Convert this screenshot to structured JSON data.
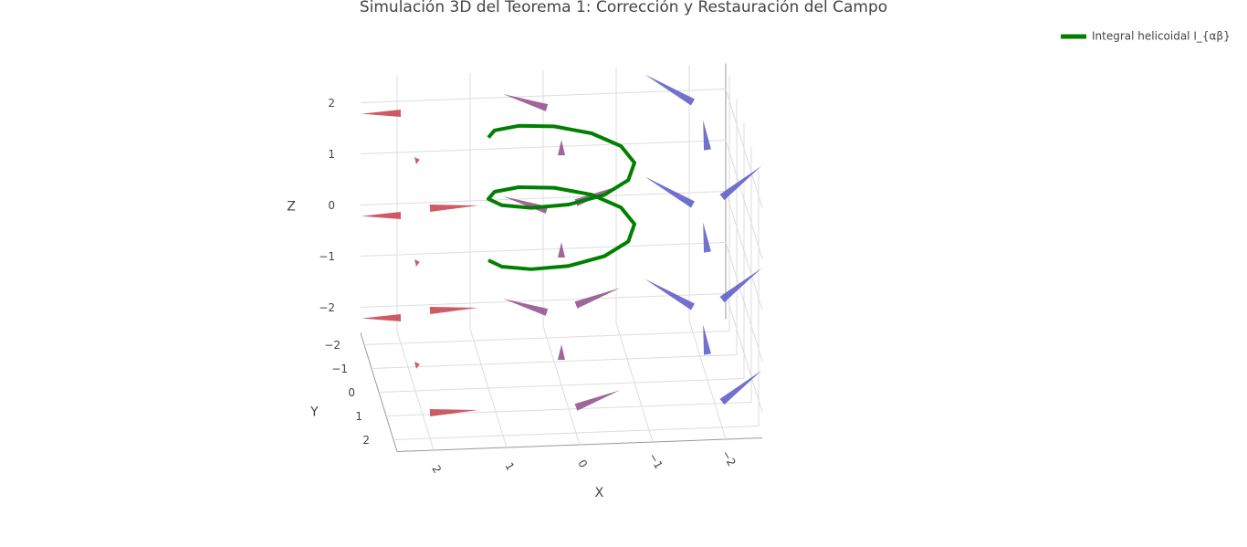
{
  "chart_data": {
    "type": "scatter3d",
    "title": "Simulación 3D del Teorema 1: Corrección y Restauración del Campo",
    "xlabel": "X",
    "ylabel": "Y",
    "zlabel": "Z",
    "xlim": [
      -2.5,
      2.5
    ],
    "ylim": [
      -2.5,
      2.5
    ],
    "zlim": [
      -2.5,
      2.5
    ],
    "xticks": [
      2,
      1,
      0,
      {
        "value": -1,
        "label": "−1"
      },
      {
        "value": -2,
        "label": "−2"
      }
    ],
    "yticks": [
      {
        "value": -2,
        "label": "−2"
      },
      {
        "value": -1,
        "label": "−1"
      },
      0,
      1,
      2
    ],
    "zticks": [
      {
        "value": -2,
        "label": "−2"
      },
      {
        "value": -1,
        "label": "−1"
      },
      0,
      1,
      2
    ],
    "grid": true,
    "legend": "top-right",
    "series": [
      {
        "name": "Integral helicoidal I_{αβ}",
        "color": "#008000",
        "x": [
          1,
          0.866,
          0.5,
          0,
          -0.5,
          -0.866,
          -1,
          -0.866,
          -0.5,
          0,
          0.5,
          0.866,
          1,
          0.866,
          0.5,
          0,
          -0.5,
          -0.866,
          -1,
          -0.866,
          -0.5,
          0,
          0.5,
          0.866,
          1
        ],
        "y": [
          0,
          0.5,
          0.866,
          1,
          0.866,
          0.5,
          0,
          -0.5,
          -0.866,
          -1,
          -0.866,
          -0.5,
          0,
          0.5,
          0.866,
          1,
          0.866,
          0.5,
          0,
          -0.5,
          -0.866,
          -1,
          -0.866,
          -0.5,
          0
        ],
        "z": [
          0,
          0.1,
          0.2,
          0.3,
          0.4,
          0.5,
          0.6,
          0.7,
          0.8,
          0.9,
          1,
          1.1,
          1.2,
          1.3,
          1.4,
          1.5,
          1.6,
          1.7,
          1.8,
          1.9,
          2,
          2.1,
          2.2,
          2.3,
          2.4
        ]
      }
    ],
    "cones": {
      "colorscale": [
        "#4a5bd4",
        "#d43a3a"
      ],
      "x": [
        -2,
        -2,
        -2,
        -2,
        -2,
        -2,
        -2,
        -2,
        -2,
        0,
        0,
        0,
        0,
        0,
        0,
        0,
        0,
        0,
        2,
        2,
        2,
        2,
        2,
        2,
        2,
        2,
        2
      ],
      "y": [
        -2,
        -2,
        -2,
        0,
        0,
        0,
        2,
        2,
        2,
        -2,
        -2,
        -2,
        0,
        0,
        0,
        2,
        2,
        2,
        -2,
        -2,
        -2,
        0,
        0,
        0,
        2,
        2,
        2
      ],
      "z": [
        -2,
        0,
        2,
        -2,
        0,
        2,
        -2,
        0,
        2,
        -2,
        0,
        2,
        -2,
        0,
        2,
        -2,
        0,
        2,
        -2,
        0,
        2,
        -2,
        0,
        2,
        -2,
        0,
        2
      ],
      "u": [
        0.6,
        0.6,
        0.6,
        0,
        0,
        0,
        -0.6,
        -0.6,
        -0.6,
        0.6,
        0.6,
        0.6,
        0,
        0,
        0,
        -0.6,
        -0.6,
        -0.6,
        0.6,
        0.6,
        0.6,
        0,
        0,
        0,
        -0.6,
        -0.6,
        -0.6
      ],
      "v": [
        -0.6,
        -0.6,
        -0.6,
        -0.6,
        -0.6,
        -0.6,
        -0.6,
        -0.6,
        -0.6,
        0,
        0,
        0,
        0,
        0,
        0,
        0,
        0,
        0,
        0.6,
        0.6,
        0.6,
        0.6,
        0.6,
        0.6,
        0.6,
        0.6,
        0.6
      ],
      "w": [
        0.3,
        0.3,
        0.3,
        0.3,
        0.3,
        0.3,
        0.3,
        0.3,
        0.3,
        0.3,
        0.3,
        0.3,
        0.3,
        0.3,
        0.3,
        0.3,
        0.3,
        0.3,
        0.3,
        0.3,
        0.3,
        0.3,
        0.3,
        0.3,
        0.3,
        0.3,
        0.3
      ]
    }
  }
}
